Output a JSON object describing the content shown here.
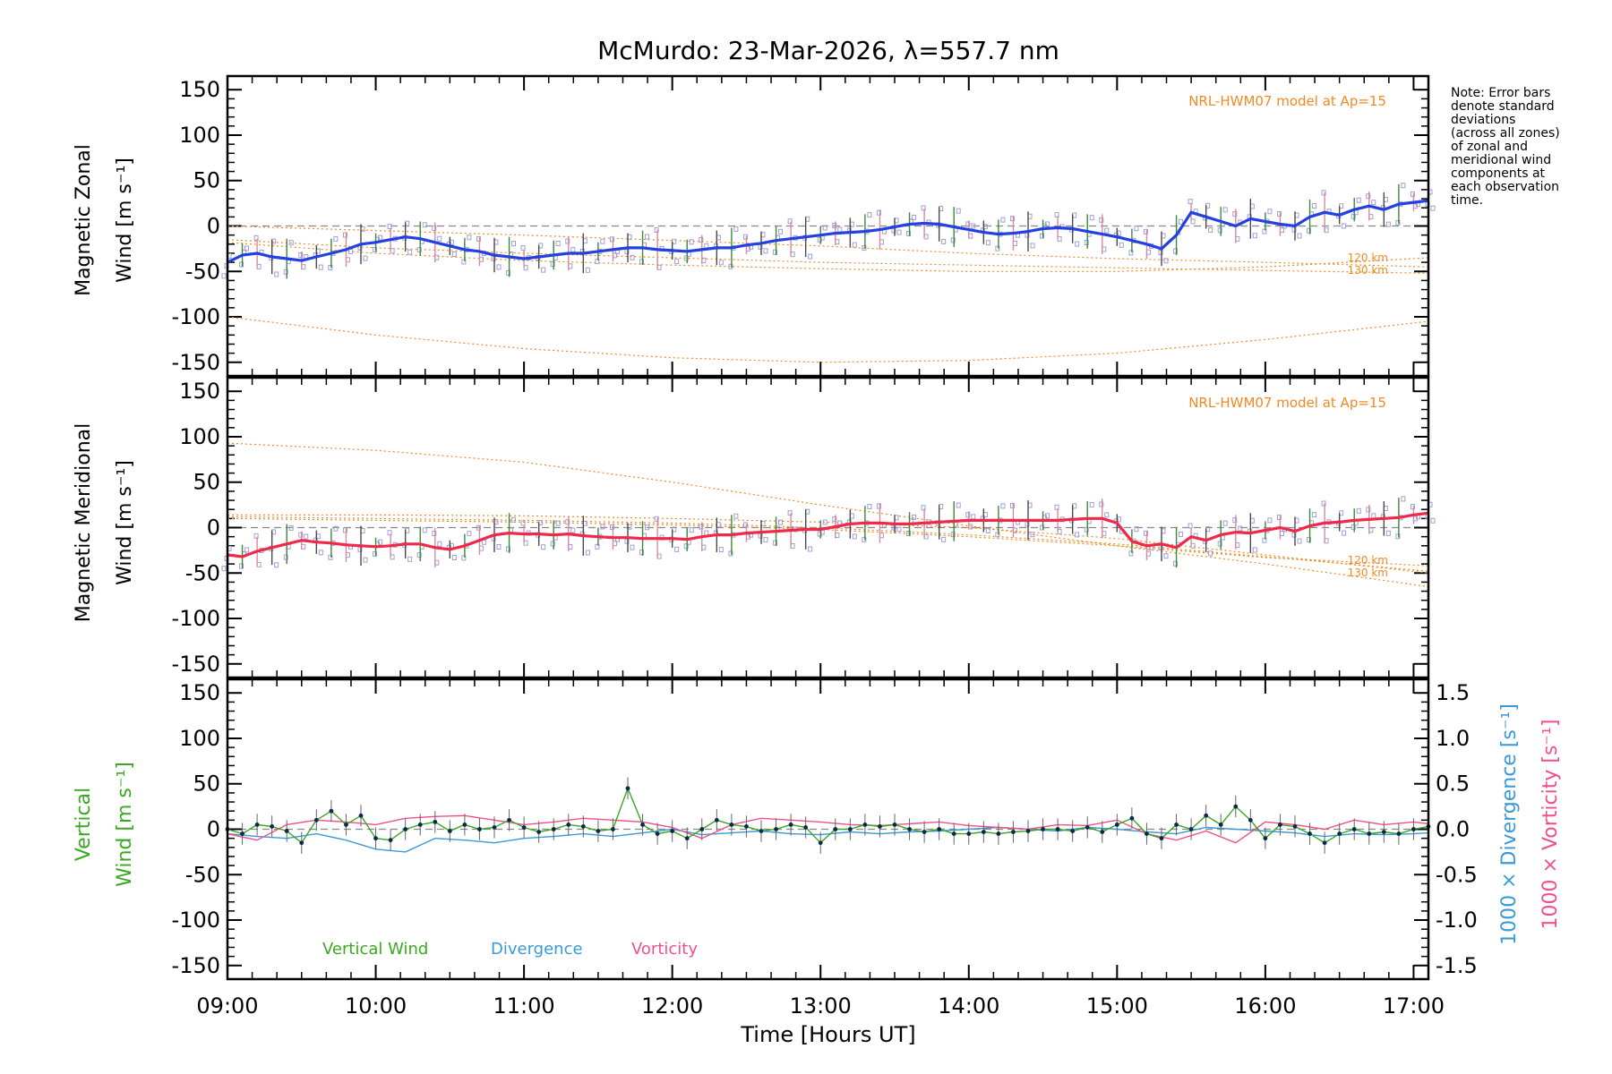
{
  "title": "McMurdo: 23-Mar-2026, λ=557.7 nm",
  "note_lines": [
    "Note: Error bars",
    "denote standard",
    "deviations",
    "(across all zones)",
    "of zonal and",
    "meridional wind",
    "components at",
    "each observation",
    "time."
  ],
  "colors": {
    "zonal": "#2340e0",
    "meridional": "#f0284a",
    "model": "#f08a24",
    "vertical": "#3aa820",
    "divergence": "#3a9ad6",
    "vorticity": "#f0508a",
    "samples": "#9f9fd8"
  },
  "chart_data": [
    {
      "type": "line",
      "panel": "zonal",
      "ylabel_line1": "Magnetic Zonal",
      "ylabel_line2": "Wind [m s⁻¹]",
      "ylim": [
        -165,
        165
      ],
      "yticks": [
        150,
        100,
        50,
        0,
        -50,
        -100,
        -150
      ],
      "xlim": [
        9,
        17.1
      ],
      "model_label": "NRL-HWM07 model at Ap=15",
      "model_alt_labels": [
        "120 km",
        "130 km"
      ],
      "series": [
        {
          "name": "Zonal Wind",
          "x": [
            9.0,
            9.1,
            9.2,
            9.3,
            9.4,
            9.5,
            9.6,
            9.7,
            9.8,
            9.9,
            10.0,
            10.1,
            10.2,
            10.3,
            10.4,
            10.5,
            10.6,
            10.7,
            10.8,
            10.9,
            11.0,
            11.1,
            11.2,
            11.3,
            11.4,
            11.5,
            11.6,
            11.7,
            11.8,
            11.9,
            12.0,
            12.1,
            12.2,
            12.3,
            12.4,
            12.5,
            12.6,
            12.7,
            12.8,
            12.9,
            13.0,
            13.1,
            13.2,
            13.3,
            13.4,
            13.5,
            13.6,
            13.7,
            13.8,
            13.9,
            14.0,
            14.1,
            14.2,
            14.3,
            14.4,
            14.5,
            14.6,
            14.7,
            14.8,
            14.9,
            15.0,
            15.1,
            15.2,
            15.3,
            15.4,
            15.5,
            15.6,
            15.7,
            15.8,
            15.9,
            16.0,
            16.1,
            16.2,
            16.3,
            16.4,
            16.5,
            16.6,
            16.7,
            16.8,
            16.9,
            17.0,
            17.1
          ],
          "values": [
            -40,
            -32,
            -30,
            -34,
            -36,
            -38,
            -34,
            -30,
            -26,
            -20,
            -18,
            -15,
            -12,
            -14,
            -18,
            -22,
            -26,
            -28,
            -32,
            -34,
            -36,
            -34,
            -32,
            -30,
            -30,
            -28,
            -26,
            -24,
            -24,
            -26,
            -27,
            -28,
            -26,
            -24,
            -24,
            -21,
            -19,
            -16,
            -14,
            -12,
            -10,
            -8,
            -7,
            -6,
            -4,
            -1,
            2,
            3,
            2,
            -1,
            -4,
            -7,
            -9,
            -8,
            -6,
            -3,
            -2,
            -3,
            -6,
            -9,
            -12,
            -16,
            -20,
            -25,
            -10,
            15,
            10,
            5,
            0,
            8,
            5,
            2,
            0,
            10,
            15,
            12,
            18,
            22,
            18,
            24,
            26,
            28
          ]
        },
        {
          "name": "Model 1",
          "x": [
            9,
            10,
            11,
            12,
            13,
            14,
            15,
            16,
            17.1
          ],
          "values": [
            0,
            -5,
            -10,
            -16,
            -22,
            -30,
            -36,
            -40,
            -45
          ]
        },
        {
          "name": "Model 2",
          "x": [
            9,
            10,
            11,
            12,
            13,
            14,
            15,
            16,
            17.1
          ],
          "values": [
            -18,
            -30,
            -38,
            -43,
            -47,
            -50,
            -50,
            -45,
            -35
          ]
        },
        {
          "name": "Model 3",
          "x": [
            9,
            10,
            11,
            12,
            13,
            14,
            15,
            16,
            17.1
          ],
          "values": [
            -15,
            -24,
            -30,
            -35,
            -40,
            -43,
            -46,
            -49,
            -52
          ]
        },
        {
          "name": "Model 4",
          "x": [
            9,
            10,
            11,
            12,
            13,
            14,
            15,
            16,
            17.1
          ],
          "values": [
            -100,
            -120,
            -135,
            -145,
            -150,
            -148,
            -140,
            -125,
            -105
          ]
        }
      ]
    },
    {
      "type": "line",
      "panel": "meridional",
      "ylabel_line1": "Magnetic Meridional",
      "ylabel_line2": "Wind [m s⁻¹]",
      "ylim": [
        -165,
        165
      ],
      "yticks": [
        150,
        100,
        50,
        0,
        -50,
        -100,
        -150
      ],
      "xlim": [
        9,
        17.1
      ],
      "model_label": "NRL-HWM07 model at Ap=15",
      "model_alt_labels": [
        "120 km",
        "130 km"
      ],
      "series": [
        {
          "name": "Meridional Wind",
          "x": [
            9.0,
            9.1,
            9.2,
            9.3,
            9.4,
            9.5,
            9.6,
            9.7,
            9.8,
            9.9,
            10.0,
            10.1,
            10.2,
            10.3,
            10.4,
            10.5,
            10.6,
            10.7,
            10.8,
            10.9,
            11.0,
            11.1,
            11.2,
            11.3,
            11.4,
            11.5,
            11.6,
            11.7,
            11.8,
            11.9,
            12.0,
            12.1,
            12.2,
            12.3,
            12.4,
            12.5,
            12.6,
            12.7,
            12.8,
            12.9,
            13.0,
            13.1,
            13.2,
            13.3,
            13.4,
            13.5,
            13.6,
            13.7,
            13.8,
            13.9,
            14.0,
            14.1,
            14.2,
            14.3,
            14.4,
            14.5,
            14.6,
            14.7,
            14.8,
            14.9,
            15.0,
            15.1,
            15.2,
            15.3,
            15.4,
            15.5,
            15.6,
            15.7,
            15.8,
            15.9,
            16.0,
            16.1,
            16.2,
            16.3,
            16.4,
            16.5,
            16.6,
            16.7,
            16.8,
            16.9,
            17.0,
            17.1
          ],
          "values": [
            -30,
            -32,
            -26,
            -22,
            -18,
            -14,
            -16,
            -17,
            -19,
            -20,
            -21,
            -20,
            -18,
            -18,
            -22,
            -24,
            -20,
            -14,
            -8,
            -6,
            -7,
            -7,
            -8,
            -7,
            -9,
            -10,
            -11,
            -11,
            -12,
            -12,
            -12,
            -13,
            -10,
            -8,
            -8,
            -6,
            -5,
            -4,
            -3,
            -2,
            -2,
            1,
            4,
            5,
            5,
            4,
            4,
            5,
            6,
            7,
            8,
            8,
            8,
            8,
            8,
            8,
            8,
            9,
            10,
            10,
            5,
            -15,
            -20,
            -18,
            -22,
            -10,
            -14,
            -8,
            -5,
            -6,
            -3,
            0,
            -4,
            2,
            5,
            6,
            8,
            9,
            10,
            11,
            14,
            16
          ]
        },
        {
          "name": "Model 1",
          "x": [
            9,
            10,
            11,
            12,
            13,
            14,
            15,
            16,
            17.1
          ],
          "values": [
            93,
            85,
            72,
            50,
            25,
            2,
            -20,
            -40,
            -65
          ]
        },
        {
          "name": "Model 2",
          "x": [
            9,
            10,
            11,
            12,
            13,
            14,
            15,
            16,
            17.1
          ],
          "values": [
            14,
            14,
            13,
            10,
            6,
            0,
            -12,
            -30,
            -50
          ]
        },
        {
          "name": "Model 3",
          "x": [
            9,
            10,
            11,
            12,
            13,
            14,
            15,
            16,
            17.1
          ],
          "values": [
            12,
            10,
            8,
            5,
            0,
            -8,
            -18,
            -32,
            -48
          ]
        },
        {
          "name": "Model 4",
          "x": [
            9,
            10,
            11,
            12,
            13,
            14,
            15,
            16,
            17.1
          ],
          "values": [
            10,
            8,
            6,
            3,
            -2,
            -10,
            -20,
            -33,
            -42
          ]
        }
      ]
    },
    {
      "type": "line",
      "panel": "vertical",
      "ylabel_line1": "Vertical",
      "ylabel_line2": "Wind [m s⁻¹]",
      "ylim": [
        -165,
        165
      ],
      "yticks": [
        150,
        100,
        50,
        0,
        -50,
        -100,
        -150
      ],
      "y2lim": [
        -1.65,
        1.65
      ],
      "y2ticks": [
        1.5,
        1.0,
        0.5,
        0.0,
        -0.5,
        -1.0,
        -1.5
      ],
      "y2label_div": "1000 × Divergence [s⁻¹]",
      "y2label_vort": "1000 × Vorticity [s⁻¹]",
      "xlim": [
        9,
        17.1
      ],
      "xticks": [
        "09:00",
        "10:00",
        "11:00",
        "12:00",
        "13:00",
        "14:00",
        "15:00",
        "16:00",
        "17:00"
      ],
      "xlabel": "Time [Hours UT]",
      "legend": [
        "Vertical Wind",
        "Divergence",
        "Vorticity"
      ],
      "series": [
        {
          "name": "Vertical Wind",
          "x": [
            9.0,
            9.1,
            9.2,
            9.3,
            9.4,
            9.5,
            9.6,
            9.7,
            9.8,
            9.9,
            10.0,
            10.1,
            10.2,
            10.3,
            10.4,
            10.5,
            10.6,
            10.7,
            10.8,
            10.9,
            11.0,
            11.1,
            11.2,
            11.3,
            11.4,
            11.5,
            11.6,
            11.7,
            11.8,
            11.9,
            12.0,
            12.1,
            12.2,
            12.3,
            12.4,
            12.5,
            12.6,
            12.7,
            12.8,
            12.9,
            13.0,
            13.1,
            13.2,
            13.3,
            13.4,
            13.5,
            13.6,
            13.7,
            13.8,
            13.9,
            14.0,
            14.1,
            14.2,
            14.3,
            14.4,
            14.5,
            14.6,
            14.7,
            14.8,
            14.9,
            15.0,
            15.1,
            15.2,
            15.3,
            15.4,
            15.5,
            15.6,
            15.7,
            15.8,
            15.9,
            16.0,
            16.1,
            16.2,
            16.3,
            16.4,
            16.5,
            16.6,
            16.7,
            16.8,
            16.9,
            17.0,
            17.1
          ],
          "values": [
            0,
            -5,
            5,
            3,
            -2,
            -15,
            10,
            20,
            5,
            15,
            -10,
            -12,
            0,
            5,
            8,
            -2,
            5,
            0,
            2,
            10,
            2,
            -3,
            0,
            5,
            3,
            -2,
            0,
            45,
            5,
            -5,
            -2,
            -10,
            0,
            10,
            5,
            3,
            -2,
            0,
            5,
            2,
            -15,
            0,
            0,
            5,
            3,
            5,
            0,
            -3,
            0,
            -5,
            -5,
            -3,
            -5,
            -3,
            -2,
            0,
            0,
            -2,
            2,
            -3,
            5,
            12,
            -5,
            -10,
            5,
            0,
            15,
            5,
            25,
            10,
            -10,
            5,
            3,
            -5,
            -15,
            -5,
            0,
            -5,
            -3,
            -5,
            0,
            3
          ]
        },
        {
          "name": "Divergence",
          "x": [
            9.0,
            9.2,
            9.4,
            9.6,
            9.8,
            10.0,
            10.2,
            10.4,
            10.6,
            10.8,
            11.0,
            11.2,
            11.4,
            11.6,
            11.8,
            12.0,
            12.2,
            12.4,
            12.6,
            12.8,
            13.0,
            13.2,
            13.4,
            13.6,
            13.8,
            14.0,
            14.2,
            14.4,
            14.6,
            14.8,
            15.0,
            15.2,
            15.4,
            15.6,
            15.8,
            16.0,
            16.2,
            16.4,
            16.6,
            16.8,
            17.0,
            17.1
          ],
          "values": [
            -0.05,
            -0.08,
            -0.1,
            -0.05,
            -0.12,
            -0.22,
            -0.25,
            -0.1,
            -0.12,
            -0.15,
            -0.1,
            -0.08,
            -0.05,
            -0.08,
            -0.04,
            0.0,
            -0.06,
            -0.04,
            -0.02,
            -0.05,
            -0.06,
            -0.03,
            -0.05,
            -0.03,
            -0.02,
            0.0,
            0.02,
            0.0,
            -0.02,
            0.02,
            0.0,
            -0.03,
            -0.05,
            0.02,
            0.0,
            -0.02,
            -0.04,
            -0.08,
            -0.05,
            -0.06,
            -0.05,
            -0.04
          ]
        },
        {
          "name": "Vorticity",
          "x": [
            9.0,
            9.2,
            9.4,
            9.6,
            9.8,
            10.0,
            10.2,
            10.4,
            10.6,
            10.8,
            11.0,
            11.2,
            11.4,
            11.6,
            11.8,
            12.0,
            12.2,
            12.4,
            12.6,
            12.8,
            13.0,
            13.2,
            13.4,
            13.6,
            13.8,
            14.0,
            14.2,
            14.4,
            14.6,
            14.8,
            15.0,
            15.2,
            15.4,
            15.6,
            15.8,
            16.0,
            16.2,
            16.4,
            16.6,
            16.8,
            17.0,
            17.1
          ],
          "values": [
            -0.05,
            -0.12,
            0.05,
            0.1,
            0.08,
            0.05,
            0.12,
            0.14,
            0.15,
            0.1,
            0.05,
            0.08,
            0.12,
            0.1,
            0.08,
            0.02,
            -0.1,
            0.05,
            0.12,
            0.1,
            0.08,
            0.05,
            0.04,
            0.06,
            0.08,
            0.04,
            0.02,
            0.0,
            0.05,
            0.04,
            0.1,
            -0.05,
            -0.12,
            -0.02,
            -0.15,
            0.08,
            0.05,
            0.0,
            0.1,
            0.05,
            0.08,
            0.06
          ]
        }
      ]
    }
  ]
}
